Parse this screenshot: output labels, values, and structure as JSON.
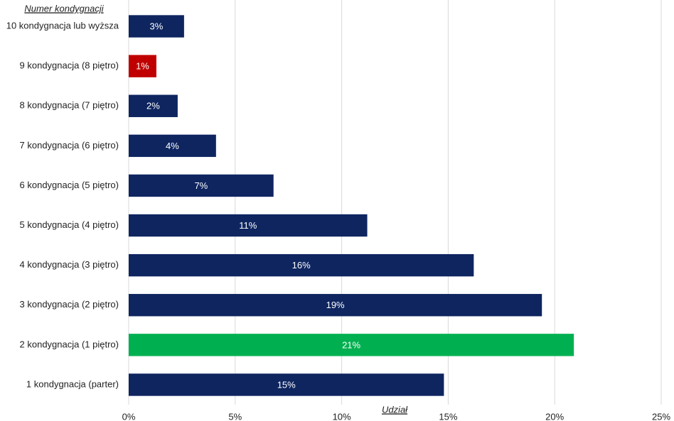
{
  "chart_data": {
    "type": "barh",
    "y_axis_title": "Numer kondygnacji",
    "x_axis_title": "Udział",
    "categories": [
      "10 kondygnacja lub wyższa",
      "9 kondygnacja (8 piętro)",
      "8 kondygnacja (7 piętro)",
      "7 kondygnacja (6 piętro)",
      "6 kondygnacja (5 piętro)",
      "5 kondygnacja (4 piętro)",
      "4 kondygnacja (3 piętro)",
      "3 kondygnacja (2 piętro)",
      "2 kondygnacja (1 piętro)",
      "1 kondygnacja (parter)"
    ],
    "values": [
      2.6,
      1.3,
      2.3,
      4.1,
      6.8,
      11.2,
      16.2,
      19.4,
      20.9,
      14.8
    ],
    "value_labels": [
      "3%",
      "1%",
      "2%",
      "4%",
      "7%",
      "11%",
      "16%",
      "19%",
      "21%",
      "15%"
    ],
    "colors": [
      "#0e2560",
      "#c00000",
      "#0e2560",
      "#0e2560",
      "#0e2560",
      "#0e2560",
      "#0e2560",
      "#0e2560",
      "#00b050",
      "#0e2560"
    ],
    "xlim": [
      0,
      25
    ],
    "xticks": [
      {
        "value": 0,
        "label": "0%"
      },
      {
        "value": 5,
        "label": "5%"
      },
      {
        "value": 10,
        "label": "10%"
      },
      {
        "value": 15,
        "label": "15%"
      },
      {
        "value": 20,
        "label": "20%"
      },
      {
        "value": 25,
        "label": "25%"
      }
    ],
    "grid": true
  }
}
